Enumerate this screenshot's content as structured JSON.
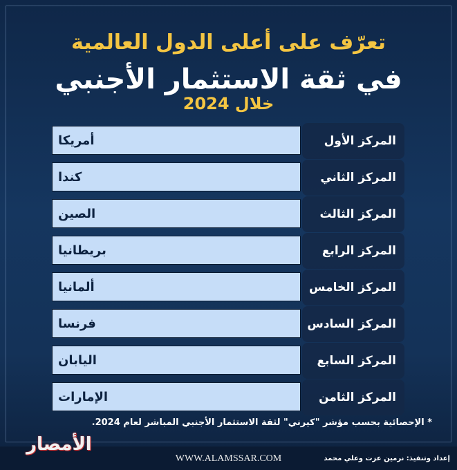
{
  "header": {
    "line1": "تعرّف على أعلى الدول العالمية",
    "line2": "في ثقة الاستثمار الأجنبي",
    "line3": "خلال 2024"
  },
  "rankings": [
    {
      "rank": "المركز الأول",
      "country": "أمريكا"
    },
    {
      "rank": "المركز الثاني",
      "country": "كندا"
    },
    {
      "rank": "المركز الثالث",
      "country": "الصين"
    },
    {
      "rank": "المركز الرابع",
      "country": "بريطانيا"
    },
    {
      "rank": "المركز الخامس",
      "country": "ألمانيا"
    },
    {
      "rank": "المركز السادس",
      "country": "فرنسا"
    },
    {
      "rank": "المركز السابع",
      "country": "اليابان"
    },
    {
      "rank": "المركز الثامن",
      "country": "الإمارات"
    }
  ],
  "note": "* الإحصائية بحسب مؤشر \"كيرني\" لثقة الاستثمار الأجنبي المباشر لعام 2024.",
  "footer": {
    "logo": "الأمصار",
    "url": "WWW.ALAMSSAR.COM",
    "credit": "إعداد وتنفيذ: نرمين عزت وعلي محمد"
  },
  "colors": {
    "accent": "#f4c542",
    "value_box": "#c6ddf8",
    "background": "#15365f"
  }
}
